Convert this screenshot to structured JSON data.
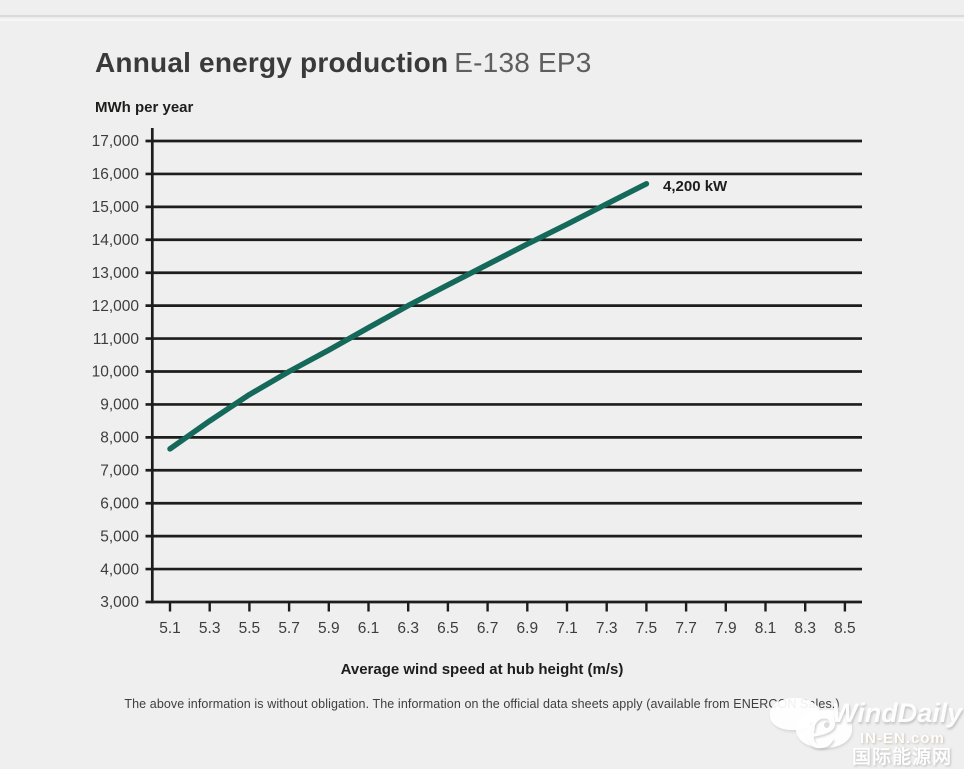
{
  "header": {
    "title_bold": "Annual energy production",
    "title_model": "E-138 EP3"
  },
  "page": {
    "footnote": "The above information is without obligation. The information on the official data sheets apply (available from ENERCON Sales.)"
  },
  "chart_data": {
    "type": "line",
    "title": "Annual energy production E-138 EP3",
    "ylabel": "MWh per year",
    "xlabel": "Average wind speed at hub height (m/s)",
    "series_label": "4,200 kW",
    "x": [
      5.1,
      5.3,
      5.5,
      5.7,
      5.9,
      6.1,
      6.3,
      6.5,
      6.7,
      6.9,
      7.1,
      7.3,
      7.5
    ],
    "values": [
      7650,
      8500,
      9300,
      10000,
      10650,
      11330,
      12000,
      12630,
      13250,
      13870,
      14470,
      15090,
      15700
    ],
    "x_ticks": [
      "5.1",
      "5.3",
      "5.5",
      "5.7",
      "5.9",
      "6.1",
      "6.3",
      "6.5",
      "6.7",
      "6.9",
      "7.1",
      "7.3",
      "7.5",
      "7.7",
      "7.9",
      "8.1",
      "8.3",
      "8.5"
    ],
    "y_ticks": [
      "17,000",
      "16,000",
      "15,000",
      "14,000",
      "13,000",
      "12,000",
      "11,000",
      "10,000",
      "9,000",
      "8,000",
      "7,000",
      "6,000",
      "5,000",
      "4,000",
      "3,000"
    ],
    "xlim": [
      5.0,
      8.6
    ],
    "ylim": [
      3000,
      17000
    ],
    "grid": "horizontal",
    "legend_position": "none",
    "line_color": "#15695a",
    "grid_color": "#1d1d1b",
    "tick_label_color": "#3d3d3d"
  },
  "watermark": {
    "brand": "WindDaily",
    "site": "IN-EN.com",
    "site_cn": "国际能源网",
    "logo_glyph": "e"
  }
}
